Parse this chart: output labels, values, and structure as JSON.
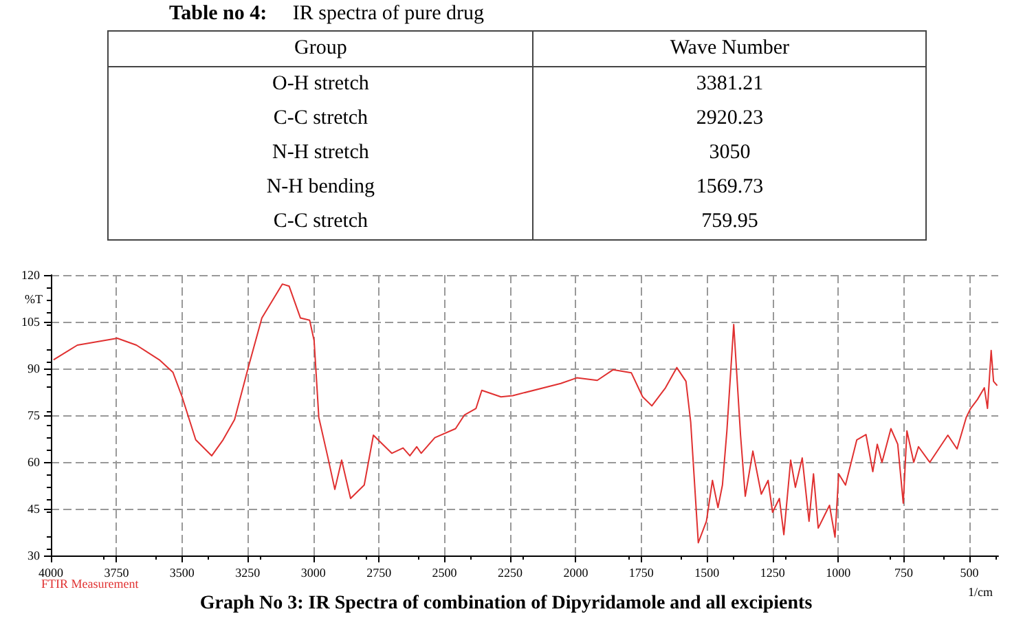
{
  "chart_data": [
    {
      "type": "other",
      "title": "Table no 4: IR spectra of pure drug",
      "ylabel": "Group",
      "categories": [
        "Wave Number"
      ],
      "y_categories": [
        "O-H stretch",
        "C-C stretch",
        "N-H stretch",
        "N-H bending",
        "C-C stretch"
      ],
      "cell_labels": [
        [
          "3381.21"
        ],
        [
          "2920.23"
        ],
        [
          "3050"
        ],
        [
          "1569.73"
        ],
        [
          "759.95"
        ]
      ]
    },
    {
      "type": "line",
      "xlabel": "1/cm",
      "ylabel": "%T",
      "xlim": [
        4000,
        390
      ],
      "ylim": [
        30,
        120
      ],
      "xticks": [
        4000,
        3750,
        3500,
        3250,
        3000,
        2750,
        2500,
        2250,
        2000,
        1750,
        1500,
        1250,
        1000,
        750,
        500
      ],
      "yticks": [
        30,
        45,
        60,
        75,
        90,
        105,
        120
      ],
      "grid": true,
      "marker": "none",
      "line_style": "solid",
      "annotations": [
        "FTIR Measurement",
        "Graph No 3: IR Spectra of combination of Dipyridamole and all excipients"
      ],
      "series": [
        {
          "color": "#e03030",
          "x": [
            3990,
            3899,
            3747,
            3674,
            3587,
            3535,
            3500,
            3448,
            3387,
            3344,
            3300,
            3248,
            3196,
            3118,
            3092,
            3049,
            3014,
            2997,
            2979,
            2944,
            2918,
            2892,
            2858,
            2806,
            2771,
            2701,
            2658,
            2632,
            2606,
            2589,
            2537,
            2458,
            2424,
            2380,
            2358,
            2285,
            2240,
            2057,
            1996,
            1918,
            1858,
            1788,
            1745,
            1710,
            1658,
            1615,
            1580,
            1562,
            1533,
            1502,
            1479,
            1458,
            1441,
            1424,
            1398,
            1372,
            1354,
            1325,
            1293,
            1267,
            1250,
            1224,
            1207,
            1181,
            1163,
            1137,
            1111,
            1094,
            1076,
            1033,
            1012,
            998,
            972,
            929,
            894,
            868,
            851,
            833,
            799,
            773,
            752,
            738,
            712,
            694,
            651,
            582,
            547,
            512,
            495,
            469,
            443,
            431,
            417,
            408,
            394
          ],
          "values": [
            92.8,
            97.5,
            99.7,
            97.5,
            92.8,
            88.8,
            80.9,
            67.1,
            62.0,
            67.1,
            73.6,
            90.3,
            106.2,
            117.1,
            116.4,
            106.2,
            105.5,
            99.0,
            74.3,
            61.3,
            51.2,
            60.6,
            48.3,
            52.6,
            68.6,
            62.8,
            64.5,
            62.0,
            64.9,
            62.8,
            67.8,
            70.7,
            75.1,
            77.2,
            83.0,
            80.9,
            81.3,
            85.2,
            87.0,
            86.2,
            89.6,
            88.6,
            80.9,
            78.0,
            83.8,
            90.3,
            85.9,
            72.9,
            34.1,
            41.0,
            54.1,
            45.4,
            52.6,
            70.0,
            104.1,
            68.6,
            49.0,
            63.5,
            49.7,
            54.1,
            43.9,
            48.3,
            36.7,
            60.6,
            51.9,
            61.3,
            41.0,
            56.2,
            38.8,
            46.1,
            35.9,
            56.2,
            52.6,
            67.1,
            68.8,
            56.9,
            65.7,
            59.9,
            70.7,
            65.7,
            46.8,
            70.0,
            59.9,
            64.9,
            59.9,
            68.6,
            64.2,
            74.3,
            77.2,
            80.1,
            83.8,
            77.2,
            95.8,
            85.9,
            84.5
          ]
        }
      ]
    }
  ]
}
